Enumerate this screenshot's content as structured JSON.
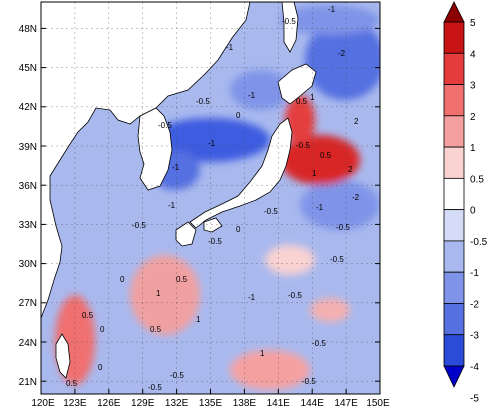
{
  "map": {
    "lat_ticks": [
      "48N",
      "45N",
      "42N",
      "39N",
      "36N",
      "33N",
      "30N",
      "27N",
      "24N",
      "21N"
    ],
    "lon_ticks": [
      "120E",
      "123E",
      "126E",
      "129E",
      "132E",
      "135E",
      "138E",
      "141E",
      "144E",
      "147E",
      "150E"
    ],
    "lat_range": [
      20,
      50
    ],
    "lon_range": [
      120,
      150
    ],
    "land_color": "#ffffff",
    "contour_labels": [
      "-1",
      "-0.5",
      "-1",
      "-2",
      "-1",
      "-0.5",
      "0",
      "0.5",
      "1",
      "2",
      "-0.5",
      "-1",
      "-0.5",
      "0.5",
      "1",
      "2",
      "-1",
      "-0.5",
      "-0.5",
      "-1",
      "-2",
      "-1",
      "-0.5",
      "-0.5",
      "0",
      "-0.5",
      "1",
      "0.5",
      "0",
      "-0.5",
      "-1",
      "0.5",
      "1",
      "0.5",
      "0",
      "1",
      "-0.5",
      "-0.5",
      "-0.5",
      "0.5",
      "0",
      "-0.5"
    ]
  },
  "colorbar": {
    "labels": [
      "5",
      "4",
      "3",
      "2",
      "1",
      "0.5",
      "0",
      "-0.5",
      "-1",
      "-2",
      "-3",
      "-4",
      "-5"
    ],
    "colors": [
      "#8b0000",
      "#c81414",
      "#e43c3c",
      "#f07070",
      "#f5a0a0",
      "#fad2d2",
      "#ffffff",
      "#d4dcf8",
      "#aab8f0",
      "#7f94e8",
      "#5570e0",
      "#2a4cd8",
      "#0000c8"
    ]
  }
}
